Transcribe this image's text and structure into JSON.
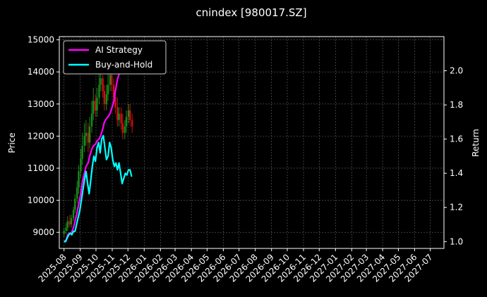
{
  "chart_data": {
    "type": "line",
    "title": "cnindex [980017.SZ]",
    "ylabel": "Price",
    "y2label": "Return",
    "x_ticks": [
      "2025-08",
      "2025-09",
      "2025-10",
      "2025-11",
      "2025-12",
      "2026-01",
      "2026-02",
      "2026-03",
      "2026-04",
      "2026-05",
      "2026-06",
      "2026-07",
      "2026-08",
      "2026-09",
      "2026-10",
      "2026-11",
      "2026-12",
      "2027-01",
      "2027-02",
      "2027-03",
      "2027-04",
      "2027-05",
      "2027-06",
      "2027-07"
    ],
    "xlim": [
      "2025-07-23",
      "2027-07-27"
    ],
    "y_ticks": [
      9000,
      10000,
      11000,
      12000,
      13000,
      14000,
      15000
    ],
    "ylim": [
      8500,
      15100
    ],
    "y2_ticks": [
      "1.0",
      "1.2",
      "1.4",
      "1.6",
      "1.8",
      "2.0"
    ],
    "y2lim": [
      0.96,
      2.2
    ],
    "grid": true,
    "legend_position": "top-left",
    "colors": {
      "background": "#000000",
      "grid": "#666666",
      "ai": "#ff00ff",
      "bh": "#00ffff",
      "up": "#1a8c1a",
      "down": "#cc1111"
    },
    "series": [
      {
        "name": "AI Strategy",
        "axis": "right",
        "x": [
          "2025-08-01",
          "2025-08-05",
          "2025-08-08",
          "2025-08-12",
          "2025-08-15",
          "2025-08-19",
          "2025-08-22",
          "2025-08-26",
          "2025-08-29",
          "2025-09-02",
          "2025-09-05",
          "2025-09-09",
          "2025-09-12",
          "2025-09-16",
          "2025-09-19",
          "2025-09-23",
          "2025-09-26",
          "2025-09-30",
          "2025-10-03",
          "2025-10-07",
          "2025-10-10",
          "2025-10-14",
          "2025-10-17",
          "2025-10-21",
          "2025-10-24",
          "2025-10-28",
          "2025-10-31",
          "2025-11-04",
          "2025-11-07",
          "2025-11-11",
          "2025-11-14",
          "2025-11-18",
          "2025-11-21",
          "2025-11-25",
          "2025-11-28",
          "2025-12-02",
          "2025-12-05"
        ],
        "values": [
          1.0,
          1.01,
          1.04,
          1.05,
          1.05,
          1.08,
          1.12,
          1.17,
          1.22,
          1.28,
          1.35,
          1.4,
          1.44,
          1.46,
          1.5,
          1.54,
          1.56,
          1.57,
          1.59,
          1.6,
          1.62,
          1.66,
          1.7,
          1.72,
          1.73,
          1.75,
          1.78,
          1.82,
          1.88,
          1.95,
          1.98,
          2.0,
          2.02,
          2.05,
          2.05,
          2.05,
          2.05
        ]
      },
      {
        "name": "Buy-and-Hold",
        "axis": "right",
        "x": [
          "2025-08-01",
          "2025-08-04",
          "2025-08-07",
          "2025-08-10",
          "2025-08-13",
          "2025-08-16",
          "2025-08-19",
          "2025-08-22",
          "2025-08-25",
          "2025-08-28",
          "2025-08-31",
          "2025-09-03",
          "2025-09-06",
          "2025-09-09",
          "2025-09-12",
          "2025-09-15",
          "2025-09-18",
          "2025-09-21",
          "2025-09-24",
          "2025-09-27",
          "2025-09-30",
          "2025-10-03",
          "2025-10-06",
          "2025-10-09",
          "2025-10-12",
          "2025-10-15",
          "2025-10-18",
          "2025-10-21",
          "2025-10-24",
          "2025-10-27",
          "2025-10-30",
          "2025-11-02",
          "2025-11-05",
          "2025-11-08",
          "2025-11-11",
          "2025-11-14",
          "2025-11-17",
          "2025-11-20",
          "2025-11-23",
          "2025-11-26",
          "2025-11-29",
          "2025-12-02",
          "2025-12-05",
          "2025-12-08"
        ],
        "values": [
          1.0,
          1.0,
          1.02,
          1.04,
          1.05,
          1.04,
          1.06,
          1.06,
          1.1,
          1.14,
          1.18,
          1.24,
          1.3,
          1.36,
          1.41,
          1.34,
          1.28,
          1.36,
          1.44,
          1.5,
          1.47,
          1.55,
          1.58,
          1.52,
          1.6,
          1.62,
          1.55,
          1.48,
          1.5,
          1.58,
          1.55,
          1.48,
          1.44,
          1.46,
          1.42,
          1.46,
          1.4,
          1.34,
          1.37,
          1.4,
          1.39,
          1.42,
          1.42,
          1.38
        ]
      }
    ],
    "candles": {
      "x": [
        "2025-08-01",
        "2025-08-05",
        "2025-08-08",
        "2025-08-12",
        "2025-08-15",
        "2025-08-19",
        "2025-08-22",
        "2025-08-26",
        "2025-08-29",
        "2025-09-02",
        "2025-09-05",
        "2025-09-09",
        "2025-09-12",
        "2025-09-16",
        "2025-09-19",
        "2025-09-23",
        "2025-09-26",
        "2025-09-30",
        "2025-10-03",
        "2025-10-07",
        "2025-10-10",
        "2025-10-14",
        "2025-10-17",
        "2025-10-21",
        "2025-10-24",
        "2025-10-28",
        "2025-10-31",
        "2025-11-04",
        "2025-11-07",
        "2025-11-11",
        "2025-11-14",
        "2025-11-18",
        "2025-11-21",
        "2025-11-25",
        "2025-11-28",
        "2025-12-02",
        "2025-12-05",
        "2025-12-09"
      ],
      "open": [
        8950,
        9050,
        9150,
        9350,
        9250,
        9450,
        9700,
        10050,
        10400,
        10900,
        11300,
        11700,
        12000,
        12100,
        11800,
        12300,
        12700,
        13100,
        12800,
        13200,
        13600,
        13800,
        13400,
        13000,
        13300,
        13600,
        13900,
        13600,
        13200,
        12900,
        12500,
        12700,
        12400,
        12100,
        12300,
        12600,
        12800,
        12500
      ],
      "close": [
        9050,
        9150,
        9350,
        9250,
        9450,
        9700,
        10050,
        10400,
        10900,
        11300,
        11700,
        12000,
        12100,
        11800,
        12300,
        12700,
        13100,
        12800,
        13200,
        13600,
        13800,
        13400,
        13000,
        13300,
        13600,
        13900,
        13600,
        13200,
        12900,
        12500,
        12700,
        12400,
        12100,
        12300,
        12600,
        12800,
        12500,
        12300
      ],
      "high": [
        9150,
        9300,
        9500,
        9550,
        9550,
        9800,
        10200,
        10600,
        11100,
        11600,
        12100,
        12400,
        12500,
        12400,
        12600,
        13100,
        13500,
        13300,
        13500,
        14000,
        14300,
        13900,
        13600,
        13600,
        14000,
        14300,
        14100,
        13800,
        13400,
        13200,
        12900,
        12900,
        12700,
        12500,
        12800,
        13000,
        13000,
        12700
      ],
      "low": [
        8850,
        8950,
        9050,
        9150,
        9150,
        9350,
        9600,
        9900,
        10200,
        10700,
        11100,
        11500,
        11700,
        11500,
        11600,
        12100,
        12500,
        12600,
        12600,
        13000,
        13400,
        13200,
        12800,
        12800,
        13100,
        13400,
        13400,
        13000,
        12700,
        12300,
        12300,
        12200,
        11900,
        11900,
        12100,
        12400,
        12300,
        12100
      ]
    }
  }
}
